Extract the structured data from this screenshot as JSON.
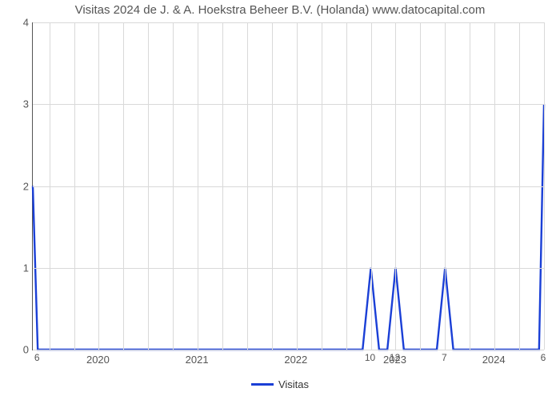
{
  "chart": {
    "type": "line",
    "title": "Visitas 2024 de J. & A. Hoekstra Beheer B.V. (Holanda) www.datocapital.com",
    "title_color": "#555555",
    "title_fontsize": 15,
    "background_color": "#ffffff",
    "grid_color": "#d9d9d9",
    "axis_color": "#555555",
    "tick_color": "#555555",
    "tick_fontsize": 13,
    "y": {
      "min": 0,
      "max": 4,
      "ticks": [
        0,
        1,
        2,
        3,
        4
      ]
    },
    "x": {
      "min": 0,
      "max": 62,
      "major_grid": [
        2,
        8,
        14,
        20,
        26,
        32,
        38,
        44,
        50,
        56,
        62
      ],
      "minor_grid": [
        5,
        11,
        17,
        23,
        29,
        35,
        41,
        47,
        53,
        59
      ],
      "year_labels": [
        {
          "x": 8,
          "text": "2020"
        },
        {
          "x": 20,
          "text": "2021"
        },
        {
          "x": 32,
          "text": "2022"
        },
        {
          "x": 44,
          "text": "2023"
        },
        {
          "x": 56,
          "text": "2024"
        }
      ]
    },
    "series": {
      "name": "Visitas",
      "color": "#1a3fd6",
      "stroke_width": 2.4,
      "points": [
        {
          "x": 0,
          "y": 2,
          "label": ""
        },
        {
          "x": 0.6,
          "y": 0,
          "label": "6"
        },
        {
          "x": 40,
          "y": 0,
          "label": ""
        },
        {
          "x": 41,
          "y": 1,
          "label": "10"
        },
        {
          "x": 42,
          "y": 0,
          "label": ""
        },
        {
          "x": 43,
          "y": 0,
          "label": ""
        },
        {
          "x": 44,
          "y": 1,
          "label": "12"
        },
        {
          "x": 45,
          "y": 0,
          "label": ""
        },
        {
          "x": 49,
          "y": 0,
          "label": ""
        },
        {
          "x": 50,
          "y": 1,
          "label": "7"
        },
        {
          "x": 51,
          "y": 0,
          "label": ""
        },
        {
          "x": 61.4,
          "y": 0,
          "label": ""
        },
        {
          "x": 62,
          "y": 3,
          "label": "6"
        }
      ]
    },
    "legend": {
      "label": "Visitas",
      "color": "#1a3fd6"
    }
  }
}
